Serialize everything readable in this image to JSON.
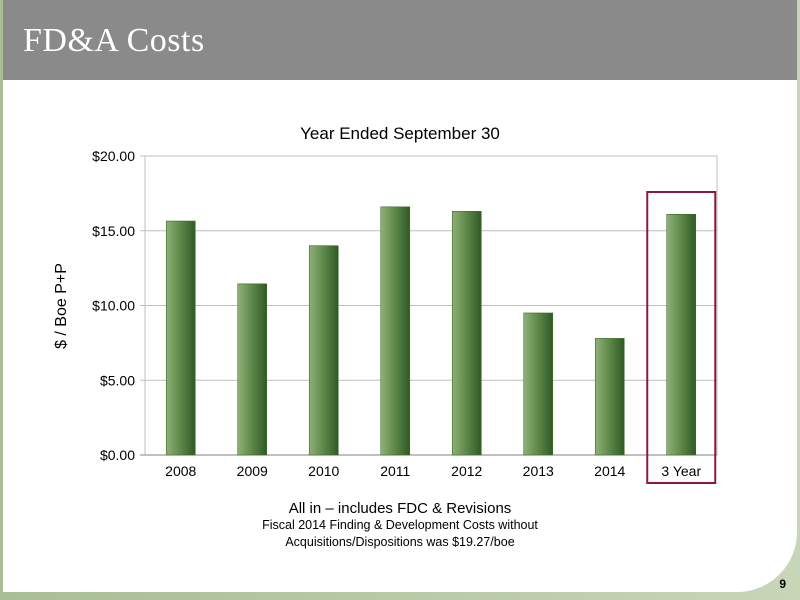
{
  "slide": {
    "title": "FD&A Costs",
    "page_number": "9",
    "footnotes": [
      "All in – includes FDC & Revisions",
      "Fiscal 2014 Finding & Development Costs without",
      "Acquisitions/Dispositions was $19.27/boe"
    ],
    "colors": {
      "title_bar": "#8a8a8a",
      "bar_fill": "#5f8a4a",
      "highlight_box": "#8b1a3a",
      "frame": "#b7c9a5"
    }
  },
  "chart_data": {
    "type": "bar",
    "title": "Year Ended September 30",
    "ylabel": "$ / Boe P+P",
    "xlabel": "",
    "categories": [
      "2008",
      "2009",
      "2010",
      "2011",
      "2012",
      "2013",
      "2014",
      "3 Year"
    ],
    "values": [
      15.65,
      11.45,
      14.0,
      16.6,
      16.3,
      9.5,
      7.8,
      16.1
    ],
    "ylim": [
      0,
      20
    ],
    "yticks": [
      0,
      5,
      10,
      15,
      20
    ],
    "ytick_labels": [
      "$0.00",
      "$5.00",
      "$10.00",
      "$15.00",
      "$20.00"
    ],
    "grid": true,
    "highlighted_category": "3 Year"
  }
}
